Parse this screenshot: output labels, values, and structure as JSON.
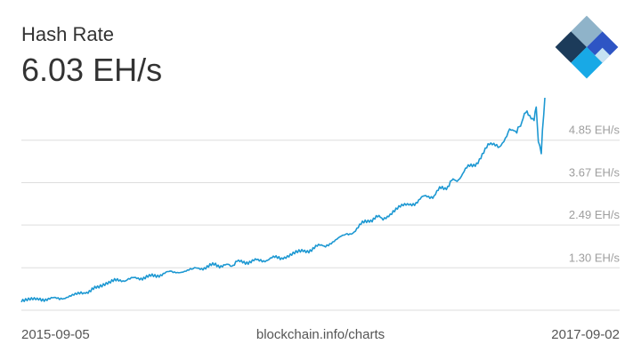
{
  "header": {
    "title": "Hash Rate",
    "current_value": "6.03 EH/s"
  },
  "logo": {
    "icon": "blockchain-diamond-logo",
    "colors": [
      "#1c3b5a",
      "#2e55c4",
      "#18a9e6",
      "#8fb3c9",
      "#c5e2f2"
    ]
  },
  "footer": {
    "start_date": "2015-09-05",
    "source": "blockchain.info/charts",
    "end_date": "2017-09-02"
  },
  "colors": {
    "line": "#1d98d2",
    "grid": "#dddddd",
    "text": "#333333",
    "tick": "#9e9e9e"
  },
  "chart_data": {
    "type": "line",
    "title": "Hash Rate",
    "ylabel": "",
    "xlabel": "",
    "x_range": [
      "2015-09-05",
      "2017-09-02"
    ],
    "ylim": [
      0.12,
      6.03
    ],
    "y_ticks": [
      1.3,
      2.49,
      3.67,
      4.85
    ],
    "y_tick_labels": [
      "1.30 EH/s",
      "2.49 EH/s",
      "3.67 EH/s",
      "4.85 EH/s"
    ],
    "grid": true,
    "series": [
      {
        "x": [
          "2015-09-05",
          "2015-10-01",
          "2015-11-01",
          "2015-12-01",
          "2015-12-20",
          "2016-01-01",
          "2016-02-01",
          "2016-03-01",
          "2016-04-01",
          "2016-05-01",
          "2016-06-01",
          "2016-06-20",
          "2016-07-01",
          "2016-08-01",
          "2016-09-01",
          "2016-10-01",
          "2016-11-01",
          "2016-12-01",
          "2017-01-01",
          "2017-01-20",
          "2017-02-01",
          "2017-03-01",
          "2017-04-01",
          "2017-04-20",
          "2017-05-01",
          "2017-06-01",
          "2017-06-15",
          "2017-07-01",
          "2017-07-15",
          "2017-07-25",
          "2017-08-01",
          "2017-08-10",
          "2017-08-18",
          "2017-08-21",
          "2017-08-24",
          "2017-08-28",
          "2017-09-02"
        ],
        "y": [
          0.4,
          0.42,
          0.46,
          0.6,
          0.75,
          0.9,
          0.98,
          1.05,
          1.18,
          1.25,
          1.38,
          1.35,
          1.45,
          1.5,
          1.6,
          1.75,
          1.95,
          2.2,
          2.65,
          2.7,
          2.85,
          3.1,
          3.35,
          3.6,
          3.75,
          4.3,
          4.65,
          4.7,
          5.2,
          5.0,
          5.45,
          5.6,
          5.5,
          5.7,
          4.9,
          4.5,
          6.03
        ]
      }
    ]
  }
}
